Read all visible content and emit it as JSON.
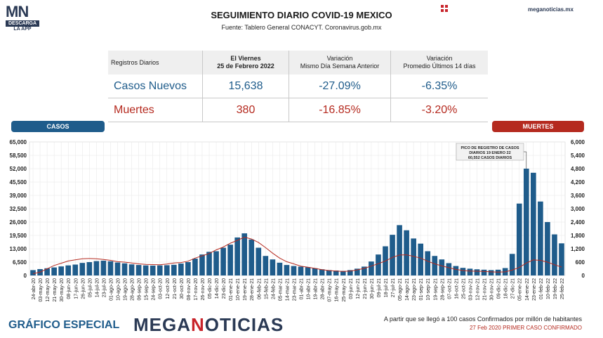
{
  "logo": {
    "letters": "MN",
    "band": "DESCARGA",
    "sub": "LA APP"
  },
  "header": {
    "title": "SEGUIMIENTO DIARIO COVID-19 MEXICO",
    "subtitle": "Fuente: Tablero General CONACYT. Coronavirus.gob.mx",
    "site": "meganoticias.mx"
  },
  "table": {
    "headers": [
      "Registros Diarios",
      "El Viernes\n25 de Febrero 2022",
      "Variación\nMismo Día Semana Anterior",
      "Variación\nPromedio Últimos 14 días"
    ],
    "rows": [
      {
        "label": "Casos Nuevos",
        "value": "15,638",
        "var_week": "-27.09%",
        "var_14d": "-6.35%"
      },
      {
        "label": "Muertes",
        "value": "380",
        "var_week": "-16.85%",
        "var_14d": "-3.20%"
      }
    ]
  },
  "labels": {
    "casos": "CASOS",
    "muertes": "MUERTES"
  },
  "colors": {
    "casos": "#1f5c8b",
    "muertes": "#b52a1f",
    "brand_navy": "#2b3a55",
    "brand_red": "#c8242b"
  },
  "footer": {
    "left": "GRÁFICO ESPECIAL",
    "brand_a": "MEGA",
    "brand_b": "N",
    "brand_c": "OTICIAS",
    "note1": "A partir que se llegó a 100 casos Confirmados por millón de habitantes",
    "note2": "27 Feb 2020 PRIMER CASO CONFIRMADO"
  },
  "chart_data": {
    "type": "bar",
    "annotation": "PICO DE REGISTRO DE CASOS\nDIARIOS 19 ENERO 22\n60,552 CASOS DIARIOS",
    "yleft": {
      "ylim": [
        0,
        65000
      ],
      "ticks": [
        "0",
        "6,500",
        "13,000",
        "19,500",
        "26,000",
        "32,500",
        "39,000",
        "45,500",
        "52,000",
        "58,500",
        "65,000"
      ]
    },
    "yright": {
      "ylim": [
        0,
        6000
      ],
      "ticks": [
        "0",
        "600",
        "1,200",
        "1,800",
        "2,400",
        "3,000",
        "3,600",
        "4,200",
        "4,800",
        "5,400",
        "6,000"
      ]
    },
    "x_tick_labels": [
      "24-abr-20",
      "03-may-20",
      "12-may-20",
      "21-may-20",
      "30-may-20",
      "08-jun-20",
      "17-jun-20",
      "26-jun-20",
      "05-jul-20",
      "14-jul-20",
      "23-jul-20",
      "01-ago-20",
      "10-ago-20",
      "19-ago-20",
      "28-ago-20",
      "06-sep-20",
      "15-sep-20",
      "24-sep-20",
      "03-oct-20",
      "12-oct-20",
      "21-oct-20",
      "30-oct-20",
      "08-nov-20",
      "17-nov-20",
      "26-nov-20",
      "05-dic-20",
      "14-dic-20",
      "23-dic-20",
      "01-ene-21",
      "10-ene-21",
      "19-ene-21",
      "28-ene-21",
      "06-feb-21",
      "15-feb-21",
      "24-feb-21",
      "05-mar-21",
      "14-mar-21",
      "23-mar-21",
      "01-abr-21",
      "10-abr-21",
      "19-abr-21",
      "28-abr-21",
      "07-may-21",
      "16-may-21",
      "25-may-21",
      "03-jun-21",
      "12-jun-21",
      "21-jun-21",
      "30-jun-21",
      "09-jul-21",
      "18-jul-21",
      "27-jul-21",
      "05-ago-21",
      "14-ago-21",
      "23-ago-21",
      "01-sep-21",
      "10-sep-21",
      "19-sep-21",
      "28-sep-21",
      "07-oct-21",
      "16-oct-21",
      "25-oct-21",
      "03-nov-21",
      "12-nov-21",
      "21-nov-21",
      "30-nov-21",
      "09-dic-21",
      "18-dic-21",
      "27-dic-21",
      "05-ene-22",
      "14-ene-22",
      "23-ene-22",
      "01-feb-22",
      "10-feb-22",
      "19-feb-22",
      "25-feb-22"
    ],
    "series": [
      {
        "name": "CASOS",
        "axis": "left",
        "color": "#1f5c8b",
        "values": [
          2600,
          3100,
          3500,
          3900,
          4400,
          4900,
          5300,
          6100,
          6500,
          7000,
          7200,
          6900,
          6300,
          5900,
          5400,
          5100,
          4900,
          4800,
          4900,
          5000,
          5200,
          5800,
          6500,
          8200,
          10200,
          11500,
          11800,
          13500,
          15000,
          18500,
          20500,
          17500,
          13500,
          9500,
          7800,
          6200,
          5100,
          4600,
          4300,
          4000,
          3500,
          3000,
          2600,
          2400,
          2200,
          2600,
          3300,
          4300,
          6800,
          10200,
          14200,
          19800,
          24500,
          22000,
          18000,
          15500,
          11800,
          9500,
          7800,
          6000,
          4600,
          3700,
          3300,
          3000,
          2800,
          2600,
          2800,
          3600,
          10500,
          35000,
          52000,
          50000,
          36000,
          26000,
          20000,
          15638
        ]
      },
      {
        "name": "MUERTES",
        "axis": "right",
        "color": "#b52a1f",
        "values": [
          80,
          150,
          300,
          450,
          550,
          650,
          700,
          750,
          760,
          750,
          720,
          680,
          620,
          600,
          560,
          520,
          500,
          490,
          480,
          510,
          560,
          580,
          640,
          780,
          880,
          990,
          1150,
          1280,
          1450,
          1580,
          1720,
          1640,
          1480,
          1250,
          1000,
          780,
          620,
          520,
          420,
          370,
          320,
          260,
          220,
          200,
          180,
          200,
          250,
          320,
          420,
          530,
          650,
          810,
          920,
          930,
          860,
          780,
          640,
          520,
          430,
          350,
          270,
          220,
          200,
          190,
          180,
          160,
          150,
          160,
          240,
          360,
          560,
          700,
          680,
          600,
          480,
          380
        ]
      }
    ]
  }
}
